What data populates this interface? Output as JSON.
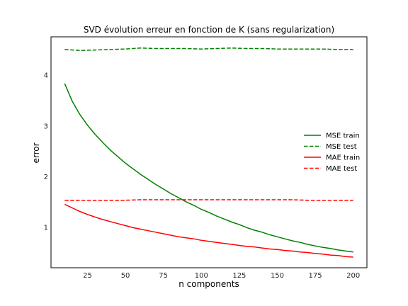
{
  "chart_data": {
    "type": "line",
    "title": "SVD évolution erreur en fonction de K (sans regularization)",
    "xlabel": "n components",
    "ylabel": "error",
    "xlim": [
      1,
      209
    ],
    "ylim": [
      0.2,
      4.75
    ],
    "xticks": [
      25,
      50,
      75,
      100,
      125,
      150,
      175,
      200
    ],
    "yticks": [
      1,
      2,
      3,
      4
    ],
    "grid": false,
    "legend_position": "center-right",
    "series": [
      {
        "name": "MSE train",
        "color": "#008000",
        "style": "solid",
        "x": [
          10,
          15,
          20,
          25,
          30,
          35,
          40,
          45,
          50,
          55,
          60,
          65,
          70,
          75,
          80,
          85,
          90,
          95,
          100,
          105,
          110,
          115,
          120,
          125,
          130,
          135,
          140,
          145,
          150,
          155,
          160,
          165,
          170,
          175,
          180,
          185,
          190,
          195,
          200
        ],
        "y": [
          3.83,
          3.48,
          3.22,
          3.01,
          2.83,
          2.67,
          2.52,
          2.39,
          2.26,
          2.15,
          2.04,
          1.94,
          1.84,
          1.75,
          1.66,
          1.58,
          1.5,
          1.43,
          1.35,
          1.29,
          1.22,
          1.16,
          1.1,
          1.05,
          0.99,
          0.94,
          0.9,
          0.85,
          0.81,
          0.77,
          0.73,
          0.7,
          0.66,
          0.63,
          0.6,
          0.58,
          0.55,
          0.53,
          0.51
        ]
      },
      {
        "name": "MSE test",
        "color": "#008000",
        "style": "dashed",
        "x": [
          10,
          20,
          30,
          40,
          50,
          60,
          70,
          80,
          90,
          100,
          110,
          120,
          130,
          140,
          150,
          160,
          170,
          180,
          190,
          200
        ],
        "y": [
          4.5,
          4.48,
          4.49,
          4.5,
          4.51,
          4.53,
          4.52,
          4.52,
          4.52,
          4.51,
          4.52,
          4.53,
          4.52,
          4.52,
          4.51,
          4.51,
          4.51,
          4.51,
          4.5,
          4.5
        ]
      },
      {
        "name": "MAE train",
        "color": "#ff0000",
        "style": "solid",
        "x": [
          10,
          15,
          20,
          25,
          30,
          35,
          40,
          45,
          50,
          55,
          60,
          65,
          70,
          75,
          80,
          85,
          90,
          95,
          100,
          105,
          110,
          115,
          120,
          125,
          130,
          135,
          140,
          145,
          150,
          155,
          160,
          165,
          170,
          175,
          180,
          185,
          190,
          195,
          200
        ],
        "y": [
          1.45,
          1.38,
          1.31,
          1.25,
          1.2,
          1.15,
          1.11,
          1.07,
          1.03,
          0.99,
          0.96,
          0.93,
          0.9,
          0.87,
          0.84,
          0.81,
          0.79,
          0.77,
          0.74,
          0.72,
          0.7,
          0.68,
          0.66,
          0.64,
          0.62,
          0.61,
          0.59,
          0.57,
          0.56,
          0.54,
          0.53,
          0.51,
          0.5,
          0.48,
          0.47,
          0.45,
          0.44,
          0.42,
          0.41
        ]
      },
      {
        "name": "MAE test",
        "color": "#ff0000",
        "style": "dashed",
        "x": [
          10,
          20,
          30,
          40,
          50,
          60,
          70,
          80,
          90,
          100,
          110,
          120,
          130,
          140,
          150,
          160,
          170,
          180,
          190,
          200
        ],
        "y": [
          1.53,
          1.53,
          1.53,
          1.53,
          1.53,
          1.54,
          1.54,
          1.54,
          1.54,
          1.54,
          1.54,
          1.54,
          1.54,
          1.54,
          1.54,
          1.54,
          1.53,
          1.53,
          1.53,
          1.53
        ]
      }
    ]
  }
}
